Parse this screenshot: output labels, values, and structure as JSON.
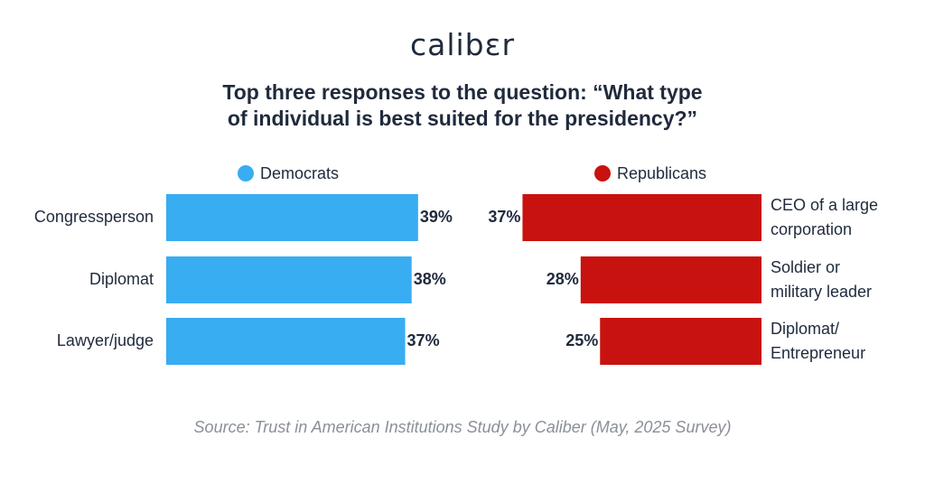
{
  "brand": {
    "logo_text": "calibɛr"
  },
  "chart_data": [
    {
      "type": "bar",
      "title": "Top three responses to the question: “What type of individual is best suited for the presidency?”",
      "title_lines": [
        "Top three responses to the question: “What type",
        "of individual is best suited for the presidency?”"
      ],
      "series_name": "Democrats",
      "color": "#38adf2",
      "orientation": "horizontal",
      "direction": "left-to-right",
      "categories": [
        "Congressperson",
        "Diplomat",
        "Lawyer/judge"
      ],
      "values": [
        39,
        38,
        37
      ],
      "value_labels": [
        "39%",
        "38%",
        "37%"
      ],
      "unit": "%",
      "legend_position": "top"
    },
    {
      "type": "bar",
      "series_name": "Republicans",
      "color": "#c8120f",
      "orientation": "horizontal",
      "direction": "right-to-left",
      "categories": [
        [
          "CEO of a large",
          "corporation"
        ],
        [
          "Soldier or",
          "military leader"
        ],
        [
          "Diplomat/",
          "Entrepreneur"
        ]
      ],
      "values": [
        37,
        28,
        25
      ],
      "value_labels": [
        "37%",
        "28%",
        "25%"
      ],
      "unit": "%",
      "legend_position": "top"
    }
  ],
  "source": "Source: Trust in American Institutions Study by Caliber (May, 2025 Survey)"
}
